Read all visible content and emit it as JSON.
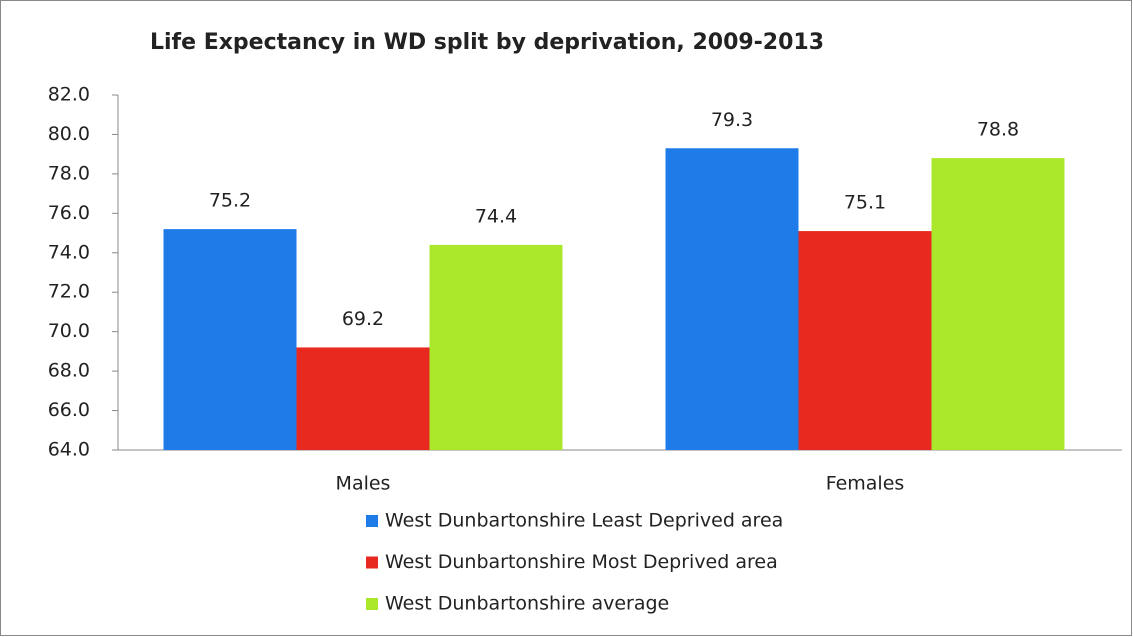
{
  "chart_data": {
    "type": "bar",
    "title": "Life Expectancy in WD split by deprivation, 2009-2013",
    "categories": [
      "Males",
      "Females"
    ],
    "series": [
      {
        "name": "West Dunbartonshire Least Deprived area",
        "color": "#1f7be8",
        "values": [
          75.2,
          79.3
        ]
      },
      {
        "name": "West Dunbartonshire Most Deprived area",
        "color": "#e8291f",
        "values": [
          69.2,
          75.1
        ]
      },
      {
        "name": "West Dunbartonshire average",
        "color": "#abe82b",
        "values": [
          74.4,
          78.8
        ]
      }
    ],
    "ylim": [
      64,
      82
    ],
    "yticks": [
      {
        "value": 64,
        "label": "64.0"
      },
      {
        "value": 66,
        "label": "66.0"
      },
      {
        "value": 68,
        "label": "68.0"
      },
      {
        "value": 70,
        "label": "70.0"
      },
      {
        "value": 72,
        "label": "72.0"
      },
      {
        "value": 74,
        "label": "74.0"
      },
      {
        "value": 76,
        "label": "76.0"
      },
      {
        "value": 78,
        "label": "78.0"
      },
      {
        "value": 80,
        "label": "80.0"
      },
      {
        "value": 82,
        "label": "82.0"
      }
    ],
    "legend": "bottom"
  }
}
